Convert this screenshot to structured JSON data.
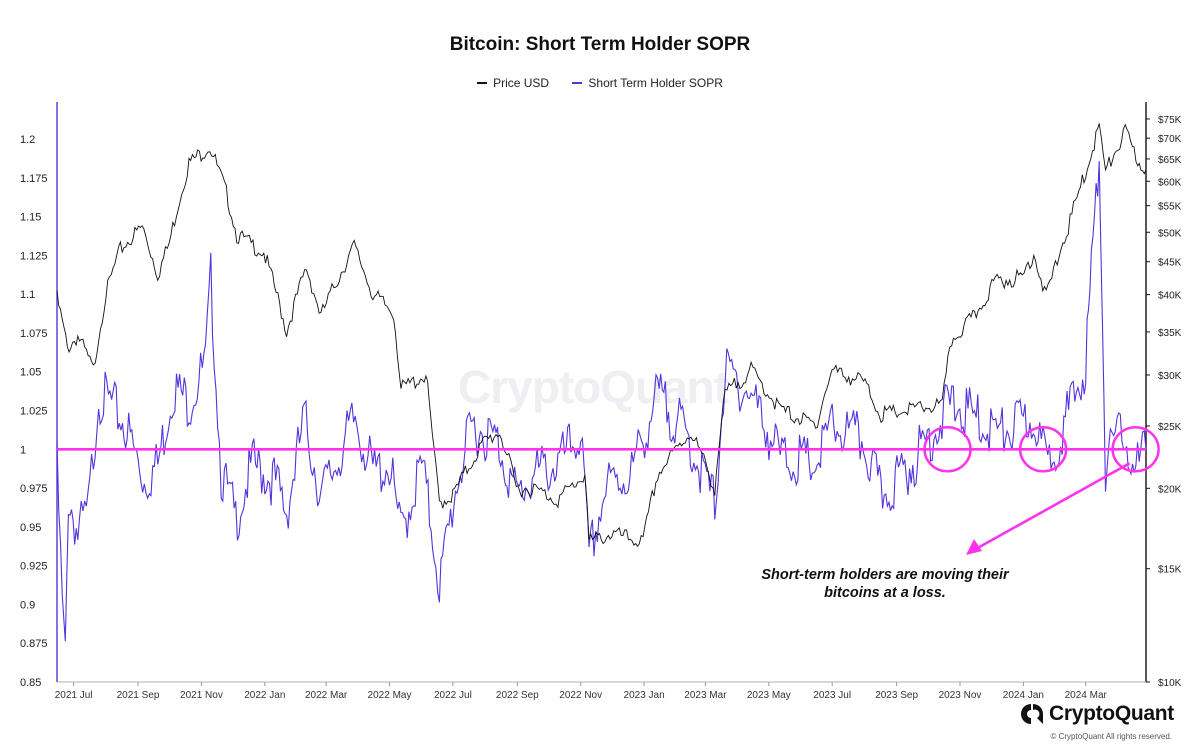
{
  "chart_data": {
    "type": "line",
    "title": "Bitcoin: Short Term Holder SOPR",
    "legend_placement": "top-center",
    "series": [
      {
        "name": "Price USD",
        "color": "#111111",
        "axis": "right"
      },
      {
        "name": "Short Term Holder SOPR",
        "color": "#5533dd",
        "axis": "left"
      }
    ],
    "x_range": [
      "2021-06-15",
      "2024-04-28"
    ],
    "x_ticks": [
      "2021 Jul",
      "2021 Sep",
      "2021 Nov",
      "2022 Jan",
      "2022 Mar",
      "2022 May",
      "2022 Jul",
      "2022 Sep",
      "2022 Nov",
      "2023 Jan",
      "2023 Mar",
      "2023 May",
      "2023 Jul",
      "2023 Sep",
      "2023 Nov",
      "2024 Jan",
      "2024 Mar"
    ],
    "left_axis": {
      "range": [
        0.85,
        1.22
      ],
      "ticks": [
        "1.2",
        "1.175",
        "1.15",
        "1.125",
        "1.1",
        "1.075",
        "1.05",
        "1.025",
        "1",
        "0.975",
        "0.95",
        "0.925",
        "0.9",
        "0.875",
        "0.85"
      ]
    },
    "right_axis": {
      "scale": "log",
      "ticks": [
        "$75K",
        "$70K",
        "$65K",
        "$60K",
        "$55K",
        "$50K",
        "$45K",
        "$40K",
        "$35K",
        "$30K",
        "$25K",
        "$20K",
        "$15K",
        "$10K"
      ]
    },
    "reference_line": {
      "y": 1,
      "color": "#ff33ee"
    },
    "price_points": [
      [
        "2021-06-15",
        39500
      ],
      [
        "2021-06-25",
        33000
      ],
      [
        "2021-07-05",
        34500
      ],
      [
        "2021-07-20",
        30500
      ],
      [
        "2021-08-01",
        40000
      ],
      [
        "2021-08-15",
        47000
      ],
      [
        "2021-09-05",
        51000
      ],
      [
        "2021-09-20",
        43000
      ],
      [
        "2021-10-01",
        48000
      ],
      [
        "2021-10-20",
        64000
      ],
      [
        "2021-11-09",
        68000
      ],
      [
        "2021-11-25",
        57500
      ],
      [
        "2021-12-05",
        49500
      ],
      [
        "2021-12-31",
        46500
      ],
      [
        "2022-01-22",
        35000
      ],
      [
        "2022-02-10",
        44000
      ],
      [
        "2022-02-24",
        37000
      ],
      [
        "2022-03-28",
        47500
      ],
      [
        "2022-04-15",
        40000
      ],
      [
        "2022-05-05",
        37500
      ],
      [
        "2022-05-12",
        28500
      ],
      [
        "2022-06-05",
        30000
      ],
      [
        "2022-06-13",
        22500
      ],
      [
        "2022-06-18",
        19000
      ],
      [
        "2022-07-01",
        19500
      ],
      [
        "2022-07-30",
        23500
      ],
      [
        "2022-08-15",
        24500
      ],
      [
        "2022-08-31",
        20000
      ],
      [
        "2022-09-15",
        20000
      ],
      [
        "2022-10-10",
        19200
      ],
      [
        "2022-11-05",
        21000
      ],
      [
        "2022-11-09",
        16500
      ],
      [
        "2022-12-01",
        17000
      ],
      [
        "2022-12-31",
        16500
      ],
      [
        "2023-01-14",
        21000
      ],
      [
        "2023-02-15",
        24500
      ],
      [
        "2023-03-10",
        20000
      ],
      [
        "2023-03-20",
        28000
      ],
      [
        "2023-04-14",
        30500
      ],
      [
        "2023-05-12",
        26500
      ],
      [
        "2023-06-15",
        25000
      ],
      [
        "2023-07-01",
        30500
      ],
      [
        "2023-07-31",
        29300
      ],
      [
        "2023-08-17",
        26000
      ],
      [
        "2023-09-15",
        26500
      ],
      [
        "2023-10-15",
        27000
      ],
      [
        "2023-10-24",
        34000
      ],
      [
        "2023-11-15",
        37000
      ],
      [
        "2023-12-05",
        42000
      ],
      [
        "2023-12-31",
        42500
      ],
      [
        "2024-01-11",
        46500
      ],
      [
        "2024-01-23",
        39500
      ],
      [
        "2024-02-15",
        52000
      ],
      [
        "2024-03-01",
        62000
      ],
      [
        "2024-03-14",
        73000
      ],
      [
        "2024-03-20",
        62000
      ],
      [
        "2024-04-08",
        71500
      ],
      [
        "2024-04-20",
        64500
      ],
      [
        "2024-04-28",
        62500
      ]
    ],
    "sopr_points": [
      [
        "2021-06-15",
        0.99
      ],
      [
        "2021-06-20",
        0.9
      ],
      [
        "2021-06-23",
        0.865
      ],
      [
        "2021-06-26",
        0.97
      ],
      [
        "2021-07-05",
        0.945
      ],
      [
        "2021-07-15",
        0.96
      ],
      [
        "2021-07-25",
        1.035
      ],
      [
        "2021-08-05",
        1.03
      ],
      [
        "2021-08-20",
        1.015
      ],
      [
        "2021-09-07",
        0.98
      ],
      [
        "2021-09-20",
        0.99
      ],
      [
        "2021-10-05",
        1.04
      ],
      [
        "2021-10-20",
        1.03
      ],
      [
        "2021-11-05",
        1.055
      ],
      [
        "2021-11-10",
        1.11
      ],
      [
        "2021-11-20",
        0.985
      ],
      [
        "2021-12-04",
        0.955
      ],
      [
        "2021-12-20",
        0.99
      ],
      [
        "2022-01-10",
        0.98
      ],
      [
        "2022-01-22",
        0.96
      ],
      [
        "2022-02-08",
        1.02
      ],
      [
        "2022-02-24",
        0.97
      ],
      [
        "2022-03-10",
        0.99
      ],
      [
        "2022-03-29",
        1.02
      ],
      [
        "2022-04-15",
        0.985
      ],
      [
        "2022-05-01",
        0.99
      ],
      [
        "2022-05-12",
        0.945
      ],
      [
        "2022-06-01",
        0.99
      ],
      [
        "2022-06-13",
        0.94
      ],
      [
        "2022-06-18",
        0.912
      ],
      [
        "2022-07-05",
        0.98
      ],
      [
        "2022-07-20",
        1.015
      ],
      [
        "2022-08-13",
        1.005
      ],
      [
        "2022-08-31",
        0.97
      ],
      [
        "2022-09-20",
        0.985
      ],
      [
        "2022-10-10",
        0.99
      ],
      [
        "2022-11-01",
        1.01
      ],
      [
        "2022-11-09",
        0.93
      ],
      [
        "2022-11-25",
        0.975
      ],
      [
        "2022-12-20",
        0.985
      ],
      [
        "2023-01-14",
        1.035
      ],
      [
        "2023-02-10",
        1.01
      ],
      [
        "2023-03-10",
        0.965
      ],
      [
        "2023-03-20",
        1.05
      ],
      [
        "2023-04-14",
        1.035
      ],
      [
        "2023-05-12",
        0.995
      ],
      [
        "2023-06-15",
        0.99
      ],
      [
        "2023-07-01",
        1.015
      ],
      [
        "2023-07-31",
        1.005
      ],
      [
        "2023-08-17",
        0.97
      ],
      [
        "2023-09-15",
        0.99
      ],
      [
        "2023-10-24",
        1.03
      ],
      [
        "2023-11-15",
        1.02
      ],
      [
        "2023-12-10",
        1.01
      ],
      [
        "2024-01-12",
        1.02
      ],
      [
        "2024-01-23",
        0.99
      ],
      [
        "2024-02-15",
        1.025
      ],
      [
        "2024-03-01",
        1.055
      ],
      [
        "2024-03-05",
        1.1
      ],
      [
        "2024-03-14",
        1.19
      ],
      [
        "2024-03-20",
        0.99
      ],
      [
        "2024-04-08",
        1.015
      ],
      [
        "2024-04-15",
        0.98
      ],
      [
        "2024-04-28",
        1.0
      ]
    ],
    "loss_circles": [
      "2023-10-20",
      "2024-01-20",
      "2024-04-18"
    ],
    "annotation": "Short-term holders are moving their bitcoins at a loss."
  },
  "watermark": "CryptoQuant",
  "brand": {
    "name": "CryptoQuant",
    "copyright": "© CryptoQuant All rights reserved."
  }
}
